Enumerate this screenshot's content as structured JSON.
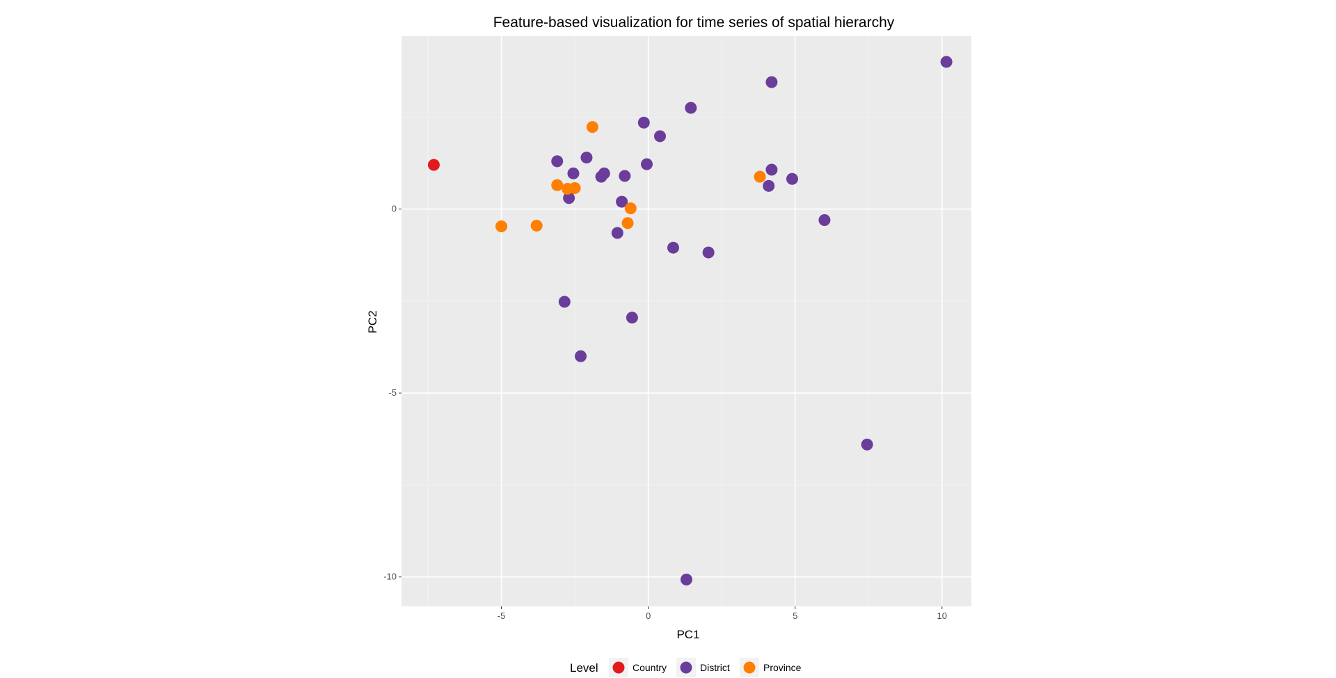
{
  "chart_data": {
    "type": "scatter",
    "title": "Feature-based visualization for time series of spatial hierarchy",
    "xlabel": "PC1",
    "ylabel": "PC2",
    "xlim": [
      -8.4,
      11
    ],
    "ylim": [
      -10.8,
      4.7
    ],
    "x_ticks": [
      -5,
      0,
      5,
      10
    ],
    "y_ticks": [
      0,
      -5,
      -10
    ],
    "x_tick_labels": [
      "-5",
      "0",
      "5",
      "10"
    ],
    "y_tick_labels": [
      "0",
      "-5",
      "-10"
    ],
    "grid": true,
    "legend": {
      "title": "Level",
      "position": "bottom",
      "entries": [
        {
          "label": "Country",
          "color": "#e31a1c"
        },
        {
          "label": "District",
          "color": "#6a3d9a"
        },
        {
          "label": "Province",
          "color": "#ff7f00"
        }
      ]
    },
    "series": [
      {
        "name": "Country",
        "color": "#e31a1c",
        "points": [
          [
            -7.3,
            1.2
          ]
        ]
      },
      {
        "name": "District",
        "color": "#6a3d9a",
        "points": [
          [
            10.15,
            4.0
          ],
          [
            4.2,
            3.45
          ],
          [
            1.45,
            2.75
          ],
          [
            -0.15,
            2.35
          ],
          [
            0.4,
            1.98
          ],
          [
            -2.1,
            1.4
          ],
          [
            -3.1,
            1.3
          ],
          [
            -0.05,
            1.22
          ],
          [
            4.2,
            1.07
          ],
          [
            -2.55,
            0.97
          ],
          [
            -1.5,
            0.97
          ],
          [
            -1.6,
            0.88
          ],
          [
            -0.8,
            0.9
          ],
          [
            4.9,
            0.82
          ],
          [
            4.1,
            0.63
          ],
          [
            -2.7,
            0.3
          ],
          [
            -0.9,
            0.2
          ],
          [
            6.0,
            -0.3
          ],
          [
            -1.05,
            -0.65
          ],
          [
            0.85,
            -1.05
          ],
          [
            2.05,
            -1.18
          ],
          [
            -2.85,
            -2.52
          ],
          [
            -0.55,
            -2.95
          ],
          [
            -2.3,
            -4.0
          ],
          [
            7.45,
            -6.4
          ],
          [
            1.3,
            -10.07
          ]
        ]
      },
      {
        "name": "Province",
        "color": "#ff7f00",
        "points": [
          [
            -1.9,
            2.23
          ],
          [
            -3.1,
            0.65
          ],
          [
            -2.75,
            0.55
          ],
          [
            -2.5,
            0.57
          ],
          [
            3.8,
            0.88
          ],
          [
            -0.6,
            0.02
          ],
          [
            -0.7,
            -0.38
          ],
          [
            -3.8,
            -0.45
          ],
          [
            -5.0,
            -0.47
          ]
        ]
      }
    ]
  }
}
